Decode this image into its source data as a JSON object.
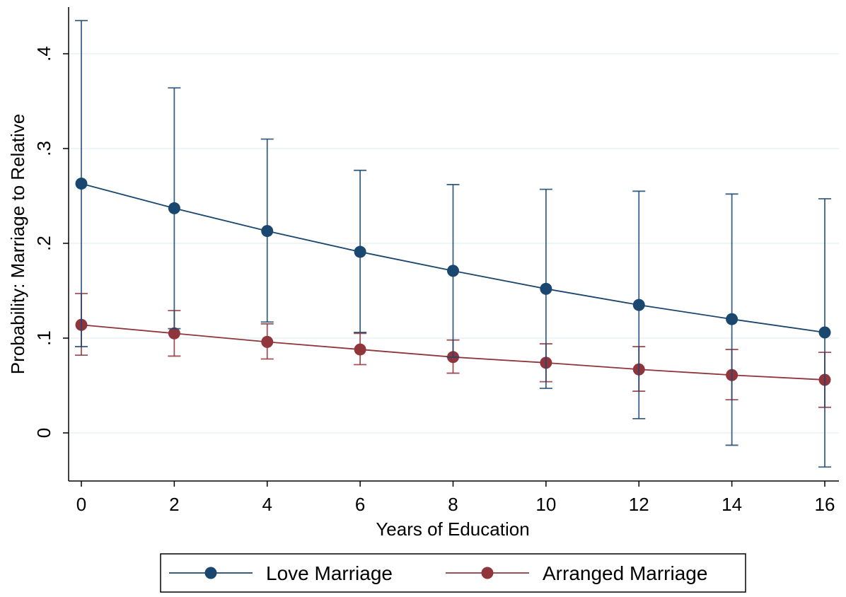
{
  "chart_data": {
    "type": "line",
    "xlabel": "Years of Education",
    "ylabel": "Probability: Marriage to Relative",
    "x": [
      0,
      2,
      4,
      6,
      8,
      10,
      12,
      14,
      16
    ],
    "xticks": [
      "0",
      "2",
      "4",
      "6",
      "8",
      "10",
      "12",
      "14",
      "16"
    ],
    "yticks": [
      {
        "value": 0,
        "label": "0"
      },
      {
        "value": 0.1,
        "label": ".1"
      },
      {
        "value": 0.2,
        "label": ".2"
      },
      {
        "value": 0.3,
        "label": ".3"
      },
      {
        "value": 0.4,
        "label": ".4"
      }
    ],
    "xlim": [
      -0.3,
      16.3
    ],
    "ylim": [
      -0.05,
      0.45
    ],
    "grid": true,
    "legend_position": "bottom",
    "series": [
      {
        "name": "Love Marriage",
        "color": "#1a476f",
        "values": [
          0.263,
          0.237,
          0.213,
          0.191,
          0.171,
          0.152,
          0.135,
          0.12,
          0.106
        ],
        "ci_low": [
          0.091,
          0.11,
          0.117,
          0.106,
          0.08,
          0.047,
          0.015,
          -0.013,
          -0.036
        ],
        "ci_high": [
          0.435,
          0.364,
          0.31,
          0.277,
          0.262,
          0.257,
          0.255,
          0.252,
          0.247
        ]
      },
      {
        "name": "Arranged Marriage",
        "color": "#90353b",
        "values": [
          0.114,
          0.105,
          0.096,
          0.088,
          0.08,
          0.074,
          0.067,
          0.061,
          0.056
        ],
        "ci_low": [
          0.082,
          0.081,
          0.078,
          0.072,
          0.063,
          0.054,
          0.044,
          0.035,
          0.027
        ],
        "ci_high": [
          0.147,
          0.129,
          0.115,
          0.105,
          0.098,
          0.094,
          0.091,
          0.088,
          0.085
        ]
      }
    ]
  }
}
